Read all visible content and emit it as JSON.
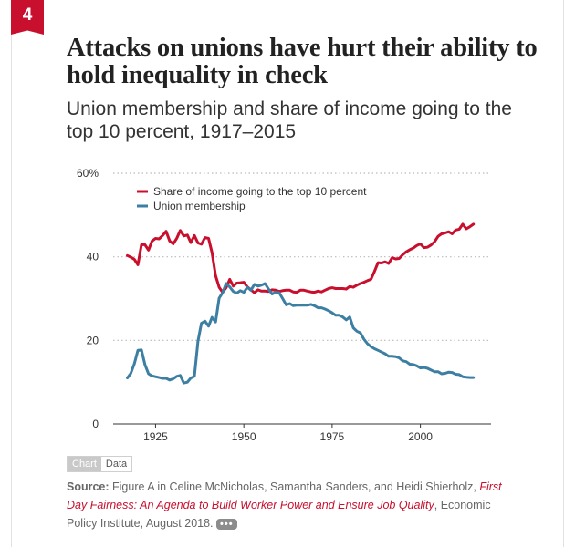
{
  "badge": "4",
  "title": "Attacks on unions have hurt their ability to hold inequality in check",
  "subtitle": "Union membership and share of income going to the top 10 percent, 1917–2015",
  "toggle": {
    "chart": "Chart",
    "data": "Data"
  },
  "source": {
    "label": "Source:",
    "pre": " Figure A in Celine McNicholas, Samantha Sanders, and Heidi Shierholz, ",
    "publication": "First Day Fairness: An Agenda to Build Worker Power and Ensure Job Quality",
    "post": ", Economic Policy Institute, August 2018.",
    "more": "•••"
  },
  "colors": {
    "income": "#c8102e",
    "union": "#3d7fa3",
    "axis": "#333333",
    "grid": "#bbbbbb"
  },
  "chart_data": {
    "type": "line",
    "title": "Union membership and share of income going to the top 10 percent, 1917–2015",
    "xlabel": "",
    "ylabel": "",
    "xlim": [
      1913,
      2020
    ],
    "ylim": [
      0,
      60
    ],
    "xticks": [
      1925,
      1950,
      1975,
      2000
    ],
    "yticks": [
      0,
      20,
      40,
      60
    ],
    "ytick_labels": [
      "0",
      "20",
      "40",
      "60%"
    ],
    "grid": "horizontal dotted",
    "legend": "top-left",
    "series": [
      {
        "name": "Share of income going to the top 10 percent",
        "color": "#c8102e",
        "x": [
          1917,
          1918,
          1919,
          1920,
          1921,
          1922,
          1923,
          1924,
          1925,
          1926,
          1927,
          1928,
          1929,
          1930,
          1931,
          1932,
          1933,
          1934,
          1935,
          1936,
          1937,
          1938,
          1939,
          1940,
          1941,
          1942,
          1943,
          1944,
          1945,
          1946,
          1947,
          1948,
          1949,
          1950,
          1951,
          1952,
          1953,
          1954,
          1955,
          1956,
          1957,
          1958,
          1959,
          1960,
          1961,
          1962,
          1963,
          1964,
          1965,
          1966,
          1967,
          1968,
          1969,
          1970,
          1971,
          1972,
          1973,
          1974,
          1975,
          1976,
          1977,
          1978,
          1979,
          1980,
          1981,
          1982,
          1983,
          1984,
          1985,
          1986,
          1987,
          1988,
          1989,
          1990,
          1991,
          1992,
          1993,
          1994,
          1995,
          1996,
          1997,
          1998,
          1999,
          2000,
          2001,
          2002,
          2003,
          2004,
          2005,
          2006,
          2007,
          2008,
          2009,
          2010,
          2011,
          2012,
          2013,
          2014,
          2015
        ],
        "values": [
          40.3,
          39.9,
          39.4,
          38.1,
          42.9,
          42.9,
          41.6,
          43.8,
          44.4,
          44.3,
          45.1,
          46.1,
          43.8,
          43.1,
          44.4,
          46.3,
          45.0,
          45.2,
          43.4,
          45.1,
          43.3,
          43.0,
          44.6,
          44.4,
          41.0,
          35.5,
          32.7,
          31.5,
          32.6,
          34.6,
          33.0,
          33.7,
          33.8,
          33.9,
          32.8,
          32.1,
          31.4,
          32.1,
          31.8,
          31.8,
          31.7,
          32.1,
          32.0,
          31.7,
          31.9,
          32.0,
          32.0,
          31.6,
          31.5,
          32.0,
          32.0,
          31.8,
          31.6,
          31.5,
          31.8,
          31.6,
          32.0,
          32.4,
          32.6,
          32.4,
          32.4,
          32.4,
          32.3,
          32.9,
          32.7,
          33.2,
          33.6,
          33.9,
          34.3,
          34.6,
          36.5,
          38.6,
          38.5,
          38.8,
          38.4,
          39.8,
          39.5,
          39.6,
          40.5,
          41.2,
          41.7,
          42.1,
          42.7,
          43.1,
          42.2,
          42.3,
          42.8,
          43.6,
          44.9,
          45.5,
          45.7,
          46.0,
          45.5,
          46.4,
          46.6,
          47.8,
          46.7,
          47.2,
          47.8
        ]
      },
      {
        "name": "Union membership",
        "color": "#3d7fa3",
        "x": [
          1917,
          1918,
          1919,
          1920,
          1921,
          1922,
          1923,
          1924,
          1925,
          1926,
          1927,
          1928,
          1929,
          1930,
          1931,
          1932,
          1933,
          1934,
          1935,
          1936,
          1937,
          1938,
          1939,
          1940,
          1941,
          1942,
          1943,
          1944,
          1945,
          1946,
          1947,
          1948,
          1949,
          1950,
          1951,
          1952,
          1953,
          1954,
          1955,
          1956,
          1957,
          1958,
          1959,
          1960,
          1961,
          1962,
          1963,
          1964,
          1965,
          1966,
          1967,
          1968,
          1969,
          1970,
          1971,
          1972,
          1973,
          1974,
          1975,
          1976,
          1977,
          1978,
          1979,
          1980,
          1981,
          1982,
          1983,
          1984,
          1985,
          1986,
          1987,
          1988,
          1989,
          1990,
          1991,
          1992,
          1993,
          1994,
          1995,
          1996,
          1997,
          1998,
          1999,
          2000,
          2001,
          2002,
          2003,
          2004,
          2005,
          2006,
          2007,
          2008,
          2009,
          2010,
          2011,
          2012,
          2013,
          2014,
          2015
        ],
        "values": [
          11.0,
          12.1,
          14.4,
          17.6,
          17.7,
          14.2,
          12.0,
          11.5,
          11.3,
          11.1,
          10.9,
          10.9,
          10.5,
          10.8,
          11.4,
          11.6,
          9.8,
          10.0,
          11.0,
          11.4,
          19.8,
          24.1,
          24.6,
          23.4,
          25.5,
          24.4,
          30.1,
          31.4,
          33.6,
          32.8,
          31.7,
          31.3,
          31.9,
          31.5,
          32.7,
          32.0,
          33.4,
          33.0,
          33.2,
          33.6,
          32.3,
          31.1,
          31.5,
          31.4,
          30.0,
          28.5,
          28.8,
          28.3,
          28.4,
          28.4,
          28.4,
          28.4,
          28.6,
          28.3,
          27.8,
          27.8,
          27.5,
          27.1,
          26.6,
          26.0,
          26.0,
          25.6,
          24.9,
          25.6,
          23.0,
          22.2,
          21.8,
          20.3,
          19.2,
          18.5,
          18.0,
          17.6,
          17.2,
          16.8,
          16.2,
          16.2,
          16.1,
          15.8,
          15.1,
          14.9,
          14.3,
          14.2,
          13.9,
          13.4,
          13.5,
          13.3,
          12.9,
          12.5,
          12.5,
          12.0,
          12.1,
          12.4,
          12.3,
          11.9,
          11.8,
          11.3,
          11.2,
          11.1,
          11.1
        ]
      }
    ]
  }
}
